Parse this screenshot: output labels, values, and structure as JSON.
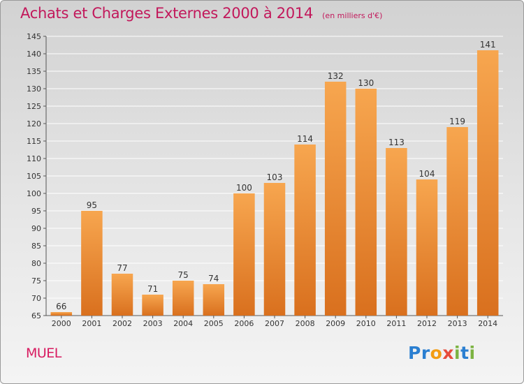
{
  "title": "Achats et Charges Externes 2000 à 2014",
  "subtitle": "(en milliers d'€)",
  "commune": "MUEL",
  "logo": {
    "letters": [
      "P",
      "r",
      "o",
      "x",
      "i",
      "t",
      "i"
    ],
    "colors": [
      "#2b7fd1",
      "#2b7fd1",
      "#f39c12",
      "#e74c3c",
      "#7cb342",
      "#2b7fd1",
      "#7cb342"
    ]
  },
  "colors": {
    "bar_top": "#f7a64f",
    "bar_bottom": "#d9701e",
    "title": "#c2185b",
    "grid": "#ffffff"
  },
  "chart_data": {
    "type": "bar",
    "categories": [
      "2000",
      "2001",
      "2002",
      "2003",
      "2004",
      "2005",
      "2006",
      "2007",
      "2008",
      "2009",
      "2010",
      "2011",
      "2012",
      "2013",
      "2014"
    ],
    "values": [
      66,
      95,
      77,
      71,
      75,
      74,
      100,
      103,
      114,
      132,
      130,
      113,
      104,
      119,
      141
    ],
    "ylim": [
      65,
      145
    ],
    "yticks": [
      65,
      70,
      75,
      80,
      85,
      90,
      95,
      100,
      105,
      110,
      115,
      120,
      125,
      130,
      135,
      140,
      145
    ],
    "grid": true,
    "title": "Achats et Charges Externes 2000 à 2014",
    "xlabel": "",
    "ylabel": ""
  }
}
